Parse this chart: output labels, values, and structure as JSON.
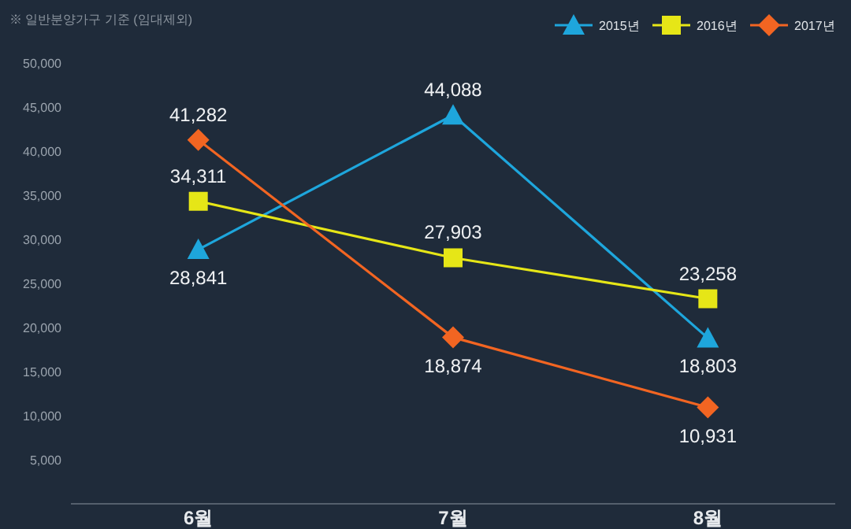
{
  "chart_data": {
    "type": "line",
    "annotations": [
      "※ 일반분양가구 기준 (임대제외)"
    ],
    "categories": [
      "6월",
      "7월",
      "8월"
    ],
    "series": [
      {
        "name": "2015년",
        "color": "#1ea6dc",
        "marker": "triangle",
        "values": [
          28841,
          44088,
          18803
        ],
        "value_labels": [
          "28,841",
          "44,088",
          "18,803"
        ]
      },
      {
        "name": "2016년",
        "color": "#e6e617",
        "marker": "square",
        "values": [
          34311,
          27903,
          23258
        ],
        "value_labels": [
          "34,311",
          "27,903",
          "23,258"
        ]
      },
      {
        "name": "2017년",
        "color": "#f26522",
        "marker": "diamond",
        "values": [
          41282,
          18874,
          10931
        ],
        "value_labels": [
          "41,282",
          "18,874",
          "10,931"
        ]
      }
    ],
    "ylim": [
      0,
      50000
    ],
    "yticks": [
      {
        "value": 5000,
        "label": "5,000"
      },
      {
        "value": 10000,
        "label": "10,000"
      },
      {
        "value": 15000,
        "label": "15,000"
      },
      {
        "value": 20000,
        "label": "20,000"
      },
      {
        "value": 25000,
        "label": "25,000"
      },
      {
        "value": 30000,
        "label": "30,000"
      },
      {
        "value": 35000,
        "label": "35,000"
      },
      {
        "value": 40000,
        "label": "40,000"
      },
      {
        "value": 45000,
        "label": "45,000"
      },
      {
        "value": 50000,
        "label": "50,000"
      }
    ],
    "legend": "top right",
    "grid": false,
    "line_style": "solid"
  }
}
